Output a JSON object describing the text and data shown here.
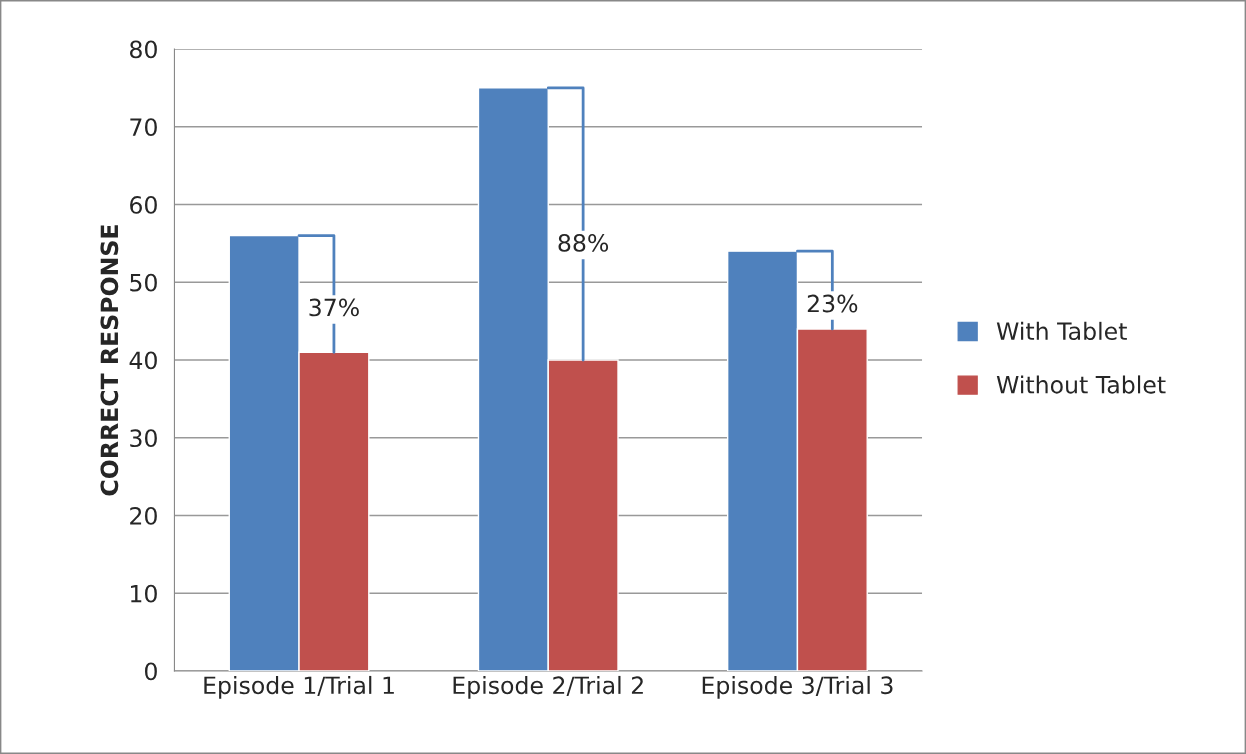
{
  "chart_data": {
    "type": "bar",
    "ylabel": "CORRECT RESPONSE",
    "categories": [
      "Episode 1/Trial 1",
      "Episode 2/Trial 2",
      "Episode 3/Trial 3"
    ],
    "series": [
      {
        "name": "With Tablet",
        "color": "#4f81bd",
        "values": [
          56,
          75,
          54
        ]
      },
      {
        "name": "Without Tablet",
        "color": "#c0504d",
        "values": [
          41,
          40,
          44
        ]
      }
    ],
    "ylim": [
      0,
      80
    ],
    "yticks": [
      0,
      10,
      20,
      30,
      40,
      50,
      60,
      70,
      80
    ],
    "grid": "y",
    "legend": "right",
    "annotations": [
      {
        "text": "37%",
        "x": "Episode 1/Trial 1",
        "y": 46.5
      },
      {
        "text": "88%",
        "x": "Episode 2/Trial 2",
        "y": 54.8
      },
      {
        "text": "23%",
        "x": "Episode 3/Trial 3",
        "y": 47
      }
    ]
  }
}
